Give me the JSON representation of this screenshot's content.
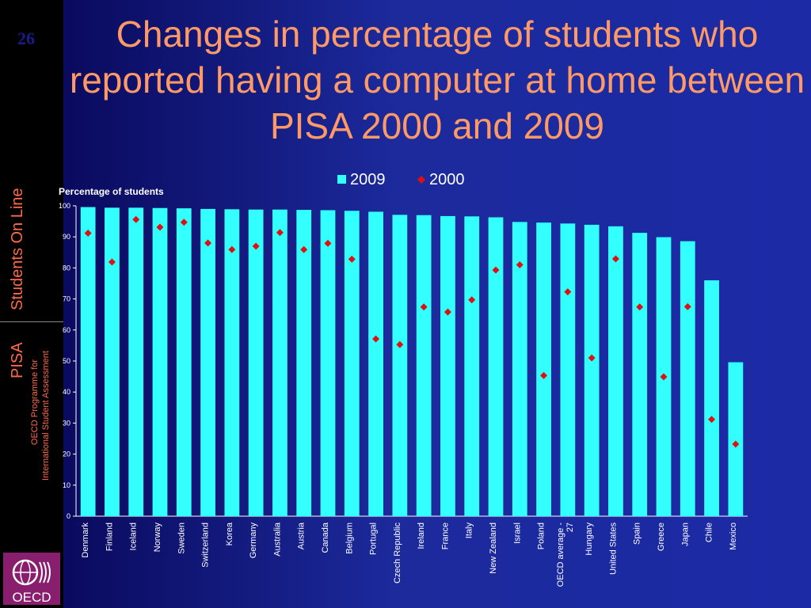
{
  "slide": {
    "number": "26",
    "title": "Changes in percentage of students who reported having a computer at home between PISA 2000 and 2009"
  },
  "sidebar": {
    "brand": "Students On Line",
    "pisa": "PISA",
    "programme_line1": "OECD Programme for",
    "programme_line2": "International Student Assessment",
    "logo_text": "OECD"
  },
  "colors": {
    "bar_2009": "#33ffff",
    "marker_2000": "#e01010",
    "title": "#ff9966",
    "sidebar_text": "#ff6a4a"
  },
  "chart_data": {
    "type": "bar",
    "ylabel": "Percentage of students",
    "ylim": [
      0,
      100
    ],
    "yticks": [
      0,
      10,
      20,
      30,
      40,
      50,
      60,
      70,
      80,
      90,
      100
    ],
    "grid": false,
    "legend_position": "top",
    "categories": [
      "Denmark",
      "Finland",
      "Iceland",
      "Norway",
      "Sweden",
      "Switzerland",
      "Korea",
      "Germany",
      "Australia",
      "Austria",
      "Canada",
      "Belgium",
      "Portugal",
      "Czech Republic",
      "Ireland",
      "France",
      "Italy",
      "New Zealand",
      "Israel",
      "Poland",
      "OECD average - 27",
      "Hungary",
      "United States",
      "Spain",
      "Greece",
      "Japan",
      "Chile",
      "Mexico"
    ],
    "series": [
      {
        "name": "2009",
        "kind": "bar",
        "values": [
          99.6,
          99.4,
          99.4,
          99.3,
          99.2,
          99.0,
          98.9,
          98.8,
          98.8,
          98.7,
          98.6,
          98.4,
          98.1,
          97.1,
          97.0,
          96.7,
          96.6,
          96.3,
          94.8,
          94.6,
          94.3,
          93.9,
          93.4,
          91.3,
          89.9,
          88.6,
          76.0,
          49.6
        ]
      },
      {
        "name": "2000",
        "kind": "marker",
        "values": [
          91.2,
          81.9,
          95.6,
          93.1,
          94.7,
          88.0,
          85.9,
          87.0,
          91.4,
          85.9,
          87.9,
          82.8,
          57.1,
          55.3,
          67.4,
          65.8,
          69.7,
          79.3,
          81.0,
          45.3,
          72.3,
          51.0,
          82.9,
          67.4,
          44.9,
          67.5,
          31.2,
          23.2
        ]
      }
    ]
  }
}
